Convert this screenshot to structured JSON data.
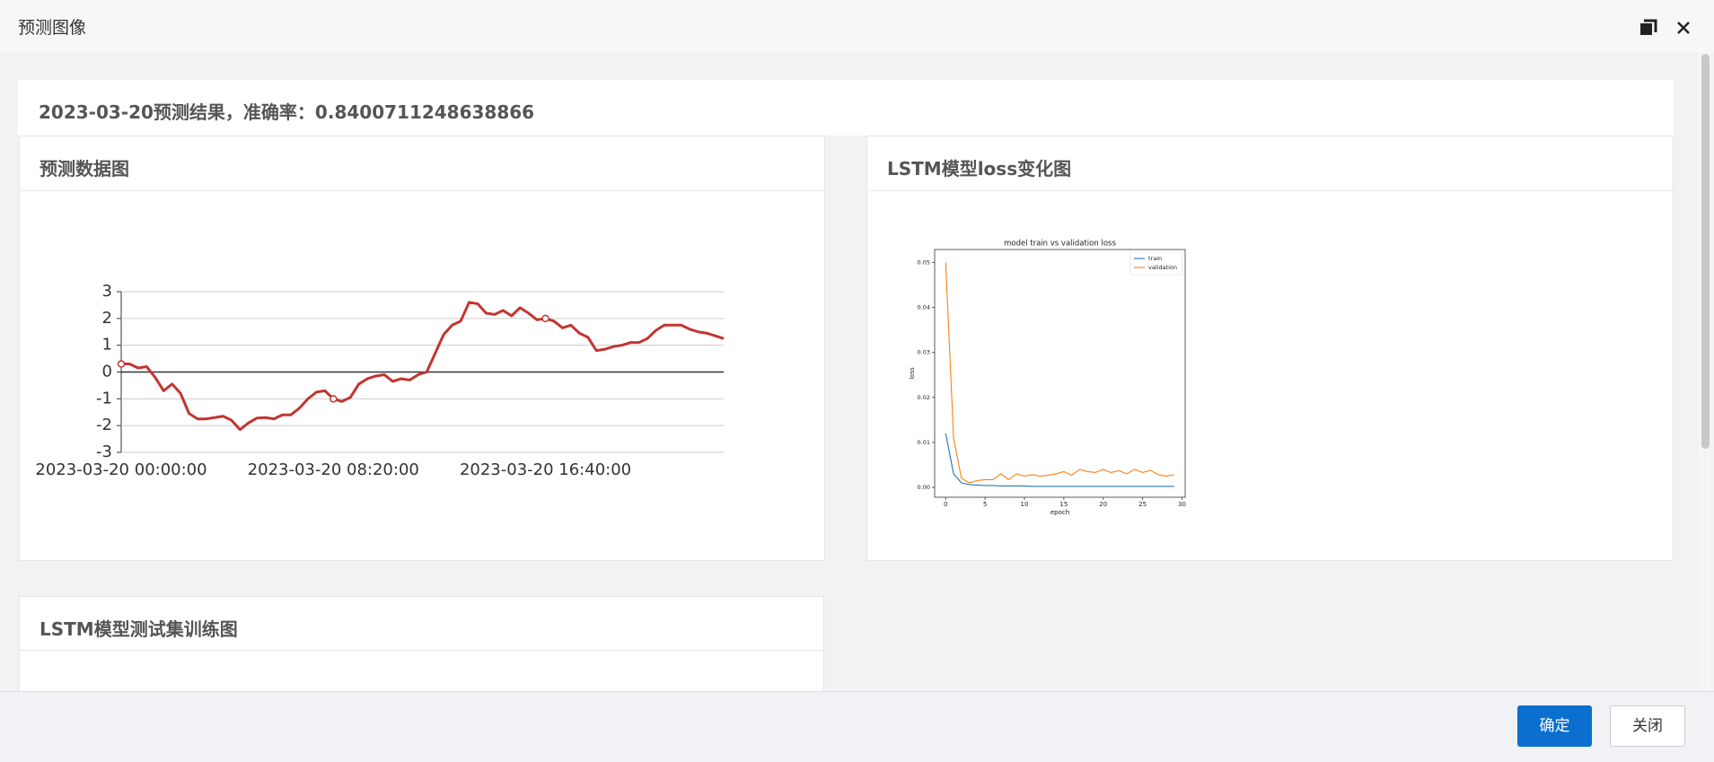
{
  "window": {
    "title": "预测图像"
  },
  "result_title": "2023-03-20预测结果，准确率：0.8400711248638866",
  "cards": [
    {
      "title": "预测数据图",
      "chart_data": {
        "type": "line",
        "categories": [
          "2023-03-20 00:00:00",
          null,
          null,
          null,
          null,
          null,
          null,
          null,
          null,
          null,
          null,
          null,
          null,
          null,
          null,
          null,
          null,
          null,
          null,
          null,
          null,
          null,
          null,
          null,
          null,
          "2023-03-20 08:20:00",
          null,
          null,
          null,
          null,
          null,
          null,
          null,
          null,
          null,
          null,
          null,
          null,
          null,
          null,
          null,
          null,
          null,
          null,
          null,
          null,
          null,
          null,
          null,
          null,
          "2023-03-20 16:40:00",
          null,
          null,
          null,
          null,
          null,
          null,
          null,
          null,
          null,
          null,
          null,
          null,
          null,
          null,
          null,
          null,
          null,
          null,
          null,
          null,
          null
        ],
        "series": [
          {
            "color": "#c23531",
            "values": [
              0.3,
              0.3,
              0.15,
              0.2,
              -0.2,
              -0.7,
              -0.45,
              -0.8,
              -1.55,
              -1.75,
              -1.75,
              -1.7,
              -1.65,
              -1.8,
              -2.15,
              -1.9,
              -1.72,
              -1.7,
              -1.75,
              -1.6,
              -1.6,
              -1.35,
              -1.0,
              -0.75,
              -0.7,
              -1.0,
              -1.1,
              -0.95,
              -0.45,
              -0.25,
              -0.15,
              -0.1,
              -0.35,
              -0.25,
              -0.3,
              -0.1,
              0.0,
              0.7,
              1.4,
              1.75,
              1.9,
              2.6,
              2.55,
              2.2,
              2.15,
              2.3,
              2.1,
              2.4,
              2.2,
              1.95,
              2.0,
              1.9,
              1.65,
              1.75,
              1.45,
              1.3,
              0.8,
              0.85,
              0.95,
              1.0,
              1.1,
              1.1,
              1.25,
              1.55,
              1.75,
              1.75,
              1.75,
              1.6,
              1.5,
              1.45,
              1.35,
              1.25
            ]
          }
        ],
        "ylim": [
          -3,
          3
        ],
        "yticks": [
          -3,
          -2,
          -1,
          0,
          1,
          2,
          3
        ],
        "grid": true
      }
    },
    {
      "title": "LSTM模型loss变化图",
      "chart_data": {
        "type": "line",
        "title": "model train vs validation loss",
        "x_label": "epoch",
        "y_label": "loss",
        "x": [
          0,
          1,
          2,
          3,
          4,
          5,
          6,
          7,
          8,
          9,
          10,
          11,
          12,
          13,
          14,
          15,
          16,
          17,
          18,
          19,
          20,
          21,
          22,
          23,
          24,
          25,
          26,
          27,
          28,
          29
        ],
        "series": [
          {
            "name": "train",
            "color": "#1f77b4",
            "values": [
              0.012,
              0.003,
              0.001,
              0.0006,
              0.0005,
              0.0004,
              0.0004,
              0.0003,
              0.0003,
              0.0003,
              0.0003,
              0.0002,
              0.0002,
              0.0002,
              0.0002,
              0.0002,
              0.0002,
              0.0002,
              0.0002,
              0.0002,
              0.0002,
              0.0002,
              0.0002,
              0.0002,
              0.0002,
              0.0002,
              0.0002,
              0.0002,
              0.0002,
              0.0002
            ]
          },
          {
            "name": "validation",
            "color": "#ff7f0e",
            "values": [
              0.05,
              0.011,
              0.002,
              0.001,
              0.0015,
              0.0017,
              0.0017,
              0.003,
              0.0017,
              0.003,
              0.0025,
              0.0028,
              0.0025,
              0.0027,
              0.003,
              0.0035,
              0.0027,
              0.004,
              0.0035,
              0.0033,
              0.004,
              0.0033,
              0.0037,
              0.003,
              0.004,
              0.0033,
              0.0038,
              0.0028,
              0.0025,
              0.0028
            ]
          }
        ],
        "xlim": [
          -1.4,
          30.4
        ],
        "xticks": [
          0,
          5,
          10,
          15,
          20,
          25,
          30
        ],
        "ylim": [
          -0.0022,
          0.0529
        ],
        "yticks": [
          {
            "value": 0,
            "label": "0.00"
          },
          {
            "value": 0.01,
            "label": "0.01"
          },
          {
            "value": 0.02,
            "label": "0.02"
          },
          {
            "value": 0.03,
            "label": "0.03"
          },
          {
            "value": 0.04,
            "label": "0.04"
          },
          {
            "value": 0.05,
            "label": "0.05"
          }
        ],
        "legend": "upper right"
      }
    },
    {
      "title": "LSTM模型测试集训练图"
    }
  ],
  "buttons": {
    "ok": "确定",
    "close": "关闭"
  }
}
